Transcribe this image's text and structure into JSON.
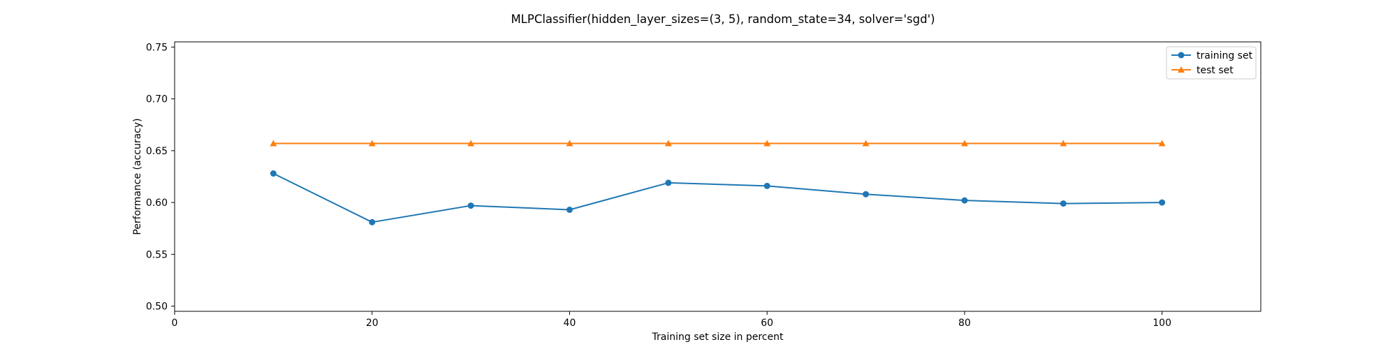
{
  "chart_data": {
    "type": "line",
    "title": "MLPClassifier(hidden_layer_sizes=(3, 5), random_state=34, solver='sgd')",
    "xlabel": "Training set size in percent",
    "ylabel": "Performance (accuracy)",
    "xlim": [
      0,
      110
    ],
    "ylim": [
      0.495,
      0.755
    ],
    "xticks": [
      0,
      20,
      40,
      60,
      80,
      100
    ],
    "xtick_labels": [
      "0",
      "20",
      "40",
      "60",
      "80",
      "100"
    ],
    "yticks": [
      0.5,
      0.55,
      0.6,
      0.65,
      0.7,
      0.75
    ],
    "ytick_labels": [
      "0.50",
      "0.55",
      "0.60",
      "0.65",
      "0.70",
      "0.75"
    ],
    "grid": false,
    "legend_position": "upper right",
    "x": [
      10,
      20,
      30,
      40,
      50,
      60,
      70,
      80,
      90,
      100
    ],
    "series": [
      {
        "name": "training set",
        "marker": "circle",
        "color": "#1f77b4",
        "values": [
          0.628,
          0.581,
          0.597,
          0.593,
          0.619,
          0.616,
          0.608,
          0.602,
          0.599,
          0.6
        ]
      },
      {
        "name": "test set",
        "marker": "triangle",
        "color": "#ff7f0e",
        "values": [
          0.657,
          0.657,
          0.657,
          0.657,
          0.657,
          0.657,
          0.657,
          0.657,
          0.657,
          0.657
        ]
      }
    ]
  }
}
